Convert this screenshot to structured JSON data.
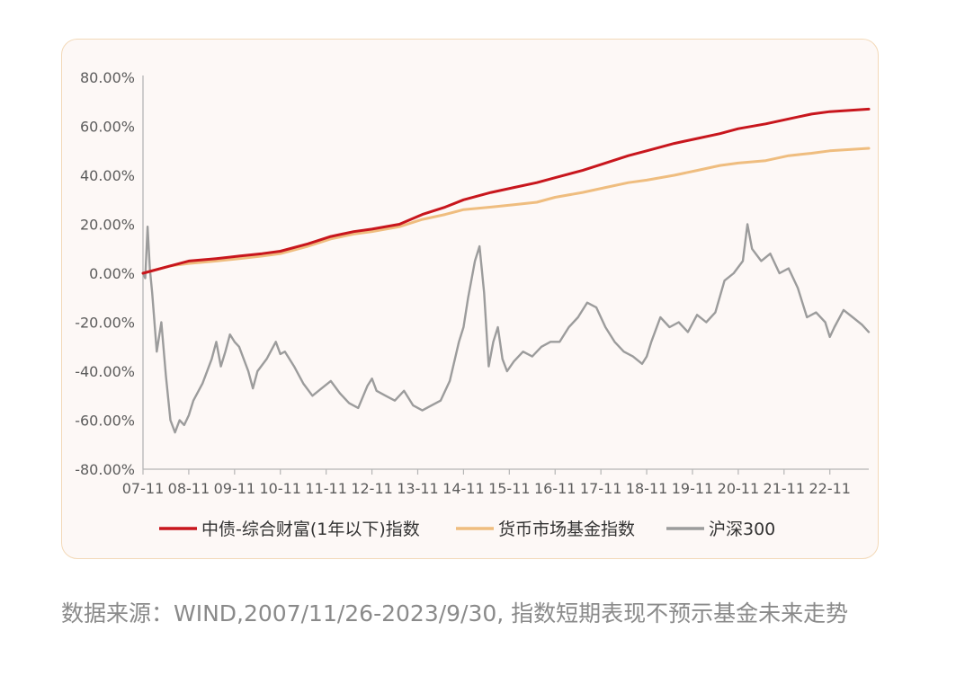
{
  "chart_data": {
    "type": "line",
    "title": "",
    "xlabel": "",
    "ylabel": "",
    "x_ticks": [
      "07-11",
      "08-11",
      "09-11",
      "10-11",
      "11-11",
      "12-11",
      "13-11",
      "14-11",
      "15-11",
      "16-11",
      "17-11",
      "18-11",
      "19-11",
      "20-11",
      "21-11",
      "22-11"
    ],
    "x_range": [
      2007.9,
      2023.75
    ],
    "y_ticks": [
      "80.00%",
      "60.00%",
      "40.00%",
      "20.00%",
      "0.00%",
      "-20.00%",
      "-40.00%",
      "-60.00%",
      "-80.00%"
    ],
    "ylim": [
      -80,
      80
    ],
    "y_unit": "%",
    "grid": false,
    "legend_position": "bottom",
    "series": [
      {
        "name": "中债-综合财富(1年以下)指数",
        "color": "#c8161d",
        "points": [
          [
            2007.9,
            0
          ],
          [
            2008.5,
            3
          ],
          [
            2008.9,
            5
          ],
          [
            2009.5,
            6
          ],
          [
            2010.0,
            7
          ],
          [
            2010.5,
            8
          ],
          [
            2010.9,
            9
          ],
          [
            2011.5,
            12
          ],
          [
            2012.0,
            15
          ],
          [
            2012.5,
            17
          ],
          [
            2012.9,
            18
          ],
          [
            2013.5,
            20
          ],
          [
            2014.0,
            24
          ],
          [
            2014.5,
            27
          ],
          [
            2014.9,
            30
          ],
          [
            2015.5,
            33
          ],
          [
            2016.0,
            35
          ],
          [
            2016.5,
            37
          ],
          [
            2016.9,
            39
          ],
          [
            2017.5,
            42
          ],
          [
            2018.0,
            45
          ],
          [
            2018.5,
            48
          ],
          [
            2018.9,
            50
          ],
          [
            2019.5,
            53
          ],
          [
            2020.0,
            55
          ],
          [
            2020.5,
            57
          ],
          [
            2020.9,
            59
          ],
          [
            2021.5,
            61
          ],
          [
            2022.0,
            63
          ],
          [
            2022.5,
            65
          ],
          [
            2022.9,
            66
          ],
          [
            2023.75,
            67
          ]
        ]
      },
      {
        "name": "货币市场基金指数",
        "color": "#efbd7f",
        "points": [
          [
            2007.9,
            0
          ],
          [
            2008.5,
            3
          ],
          [
            2008.9,
            4
          ],
          [
            2009.5,
            5
          ],
          [
            2010.0,
            6
          ],
          [
            2010.5,
            7
          ],
          [
            2010.9,
            8
          ],
          [
            2011.5,
            11
          ],
          [
            2012.0,
            14
          ],
          [
            2012.5,
            16
          ],
          [
            2012.9,
            17
          ],
          [
            2013.5,
            19
          ],
          [
            2014.0,
            22
          ],
          [
            2014.5,
            24
          ],
          [
            2014.9,
            26
          ],
          [
            2015.5,
            27
          ],
          [
            2016.0,
            28
          ],
          [
            2016.5,
            29
          ],
          [
            2016.9,
            31
          ],
          [
            2017.5,
            33
          ],
          [
            2018.0,
            35
          ],
          [
            2018.5,
            37
          ],
          [
            2018.9,
            38
          ],
          [
            2019.5,
            40
          ],
          [
            2020.0,
            42
          ],
          [
            2020.5,
            44
          ],
          [
            2020.9,
            45
          ],
          [
            2021.5,
            46
          ],
          [
            2022.0,
            48
          ],
          [
            2022.5,
            49
          ],
          [
            2022.9,
            50
          ],
          [
            2023.75,
            51
          ]
        ]
      },
      {
        "name": "沪深300",
        "color": "#9c9c9c",
        "points": [
          [
            2007.9,
            0
          ],
          [
            2007.95,
            -2
          ],
          [
            2008.0,
            19
          ],
          [
            2008.05,
            2
          ],
          [
            2008.1,
            -8
          ],
          [
            2008.2,
            -32
          ],
          [
            2008.3,
            -20
          ],
          [
            2008.4,
            -42
          ],
          [
            2008.5,
            -60
          ],
          [
            2008.6,
            -65
          ],
          [
            2008.7,
            -60
          ],
          [
            2008.8,
            -62
          ],
          [
            2008.9,
            -58
          ],
          [
            2009.0,
            -52
          ],
          [
            2009.2,
            -45
          ],
          [
            2009.4,
            -35
          ],
          [
            2009.5,
            -28
          ],
          [
            2009.6,
            -38
          ],
          [
            2009.7,
            -32
          ],
          [
            2009.8,
            -25
          ],
          [
            2009.9,
            -28
          ],
          [
            2010.0,
            -30
          ],
          [
            2010.2,
            -40
          ],
          [
            2010.3,
            -47
          ],
          [
            2010.4,
            -40
          ],
          [
            2010.6,
            -35
          ],
          [
            2010.8,
            -28
          ],
          [
            2010.9,
            -33
          ],
          [
            2011.0,
            -32
          ],
          [
            2011.2,
            -38
          ],
          [
            2011.4,
            -45
          ],
          [
            2011.6,
            -50
          ],
          [
            2011.8,
            -47
          ],
          [
            2012.0,
            -44
          ],
          [
            2012.2,
            -49
          ],
          [
            2012.4,
            -53
          ],
          [
            2012.6,
            -55
          ],
          [
            2012.8,
            -46
          ],
          [
            2012.9,
            -43
          ],
          [
            2013.0,
            -48
          ],
          [
            2013.2,
            -50
          ],
          [
            2013.4,
            -52
          ],
          [
            2013.6,
            -48
          ],
          [
            2013.8,
            -54
          ],
          [
            2014.0,
            -56
          ],
          [
            2014.2,
            -54
          ],
          [
            2014.4,
            -52
          ],
          [
            2014.6,
            -44
          ],
          [
            2014.8,
            -28
          ],
          [
            2014.9,
            -22
          ],
          [
            2015.0,
            -10
          ],
          [
            2015.15,
            5
          ],
          [
            2015.25,
            11
          ],
          [
            2015.35,
            -8
          ],
          [
            2015.45,
            -38
          ],
          [
            2015.55,
            -28
          ],
          [
            2015.65,
            -22
          ],
          [
            2015.75,
            -35
          ],
          [
            2015.85,
            -40
          ],
          [
            2016.0,
            -36
          ],
          [
            2016.2,
            -32
          ],
          [
            2016.4,
            -34
          ],
          [
            2016.6,
            -30
          ],
          [
            2016.8,
            -28
          ],
          [
            2017.0,
            -28
          ],
          [
            2017.2,
            -22
          ],
          [
            2017.4,
            -18
          ],
          [
            2017.6,
            -12
          ],
          [
            2017.8,
            -14
          ],
          [
            2018.0,
            -22
          ],
          [
            2018.2,
            -28
          ],
          [
            2018.4,
            -32
          ],
          [
            2018.6,
            -34
          ],
          [
            2018.8,
            -37
          ],
          [
            2018.9,
            -34
          ],
          [
            2019.0,
            -28
          ],
          [
            2019.2,
            -18
          ],
          [
            2019.4,
            -22
          ],
          [
            2019.6,
            -20
          ],
          [
            2019.8,
            -24
          ],
          [
            2020.0,
            -17
          ],
          [
            2020.2,
            -20
          ],
          [
            2020.4,
            -16
          ],
          [
            2020.6,
            -3
          ],
          [
            2020.8,
            0
          ],
          [
            2021.0,
            5
          ],
          [
            2021.1,
            20
          ],
          [
            2021.2,
            10
          ],
          [
            2021.4,
            5
          ],
          [
            2021.6,
            8
          ],
          [
            2021.8,
            0
          ],
          [
            2022.0,
            2
          ],
          [
            2022.2,
            -6
          ],
          [
            2022.4,
            -18
          ],
          [
            2022.6,
            -16
          ],
          [
            2022.8,
            -20
          ],
          [
            2022.9,
            -26
          ],
          [
            2023.0,
            -22
          ],
          [
            2023.2,
            -15
          ],
          [
            2023.4,
            -18
          ],
          [
            2023.6,
            -21
          ],
          [
            2023.75,
            -24
          ]
        ]
      }
    ]
  },
  "source_note": "数据来源：WIND,2007/11/26-2023/9/30, 指数短期表现不预示基金未来走势"
}
